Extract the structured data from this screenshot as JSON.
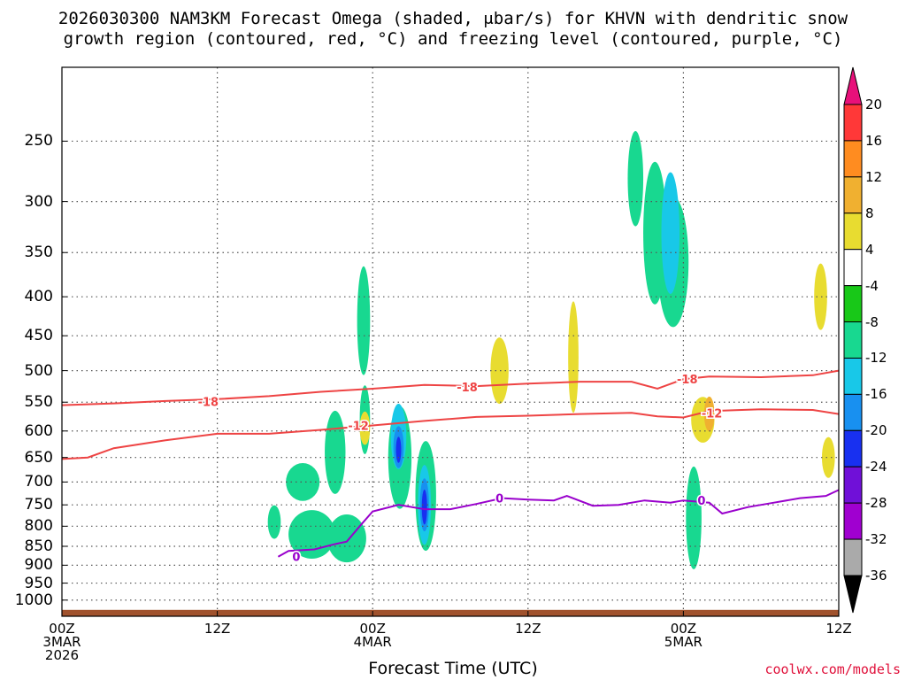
{
  "title": {
    "line1": "2026030300 NAM3KM Forecast Omega (shaded, μbar/s) for KHVN with dendritic snow",
    "line2": "growth region (contoured, red, °C) and freezing level (contoured, purple, °C)"
  },
  "credit": "coolwx.com/models",
  "colors": {
    "background": "#ffffff",
    "grid": "#555555",
    "ground": "#a0522d",
    "dgz_contour": "#ee4444",
    "freezing_contour": "#9900cc"
  },
  "chart_data": {
    "type": "heatmap",
    "title": "2026030300 NAM3KM Forecast Omega (shaded, μbar/s) for KHVN with dendritic snow growth region (contoured, red, °C) and freezing level (contoured, purple, °C)",
    "xlabel": "Forecast Time (UTC)",
    "ylabel": "",
    "x_range_hours": [
      0,
      60
    ],
    "y_range_hpa": [
      1050,
      200
    ],
    "y_scale": "log (pressure)",
    "grid": true,
    "x_ticks": [
      {
        "hour": 0,
        "lines": [
          "00Z",
          "3MAR",
          "2026"
        ]
      },
      {
        "hour": 12,
        "lines": [
          "12Z"
        ]
      },
      {
        "hour": 24,
        "lines": [
          "00Z",
          "4MAR"
        ]
      },
      {
        "hour": 36,
        "lines": [
          "12Z"
        ]
      },
      {
        "hour": 48,
        "lines": [
          "00Z",
          "5MAR"
        ]
      },
      {
        "hour": 60,
        "lines": [
          "12Z"
        ]
      }
    ],
    "y_ticks": [
      250,
      300,
      350,
      400,
      450,
      500,
      550,
      600,
      650,
      700,
      750,
      800,
      850,
      900,
      950,
      1000
    ],
    "colorbar": {
      "labels": [
        20,
        16,
        12,
        8,
        4,
        -4,
        -8,
        -12,
        -16,
        -20,
        -24,
        -28,
        -32,
        -36
      ],
      "bands": [
        {
          "lo": 16,
          "hi": 20,
          "color": "#ff3838"
        },
        {
          "lo": 12,
          "hi": 16,
          "color": "#ff8c20"
        },
        {
          "lo": 8,
          "hi": 12,
          "color": "#f0b030"
        },
        {
          "lo": 4,
          "hi": 8,
          "color": "#e8dc30"
        },
        {
          "lo": -4,
          "hi": 4,
          "color": "#ffffff"
        },
        {
          "lo": -8,
          "hi": -4,
          "color": "#18c818"
        },
        {
          "lo": -12,
          "hi": -8,
          "color": "#18d890"
        },
        {
          "lo": -16,
          "hi": -12,
          "color": "#18c8e8"
        },
        {
          "lo": -20,
          "hi": -16,
          "color": "#1890f0"
        },
        {
          "lo": -24,
          "hi": -20,
          "color": "#1830f0"
        },
        {
          "lo": -28,
          "hi": -24,
          "color": "#7010d8"
        },
        {
          "lo": -32,
          "hi": -28,
          "color": "#a000d0"
        },
        {
          "lo": -36,
          "hi": -32,
          "color": "#aaaaaa"
        }
      ],
      "top_arrow_color": "#e8107a",
      "bottom_arrow_color": "#000000"
    },
    "contours": [
      {
        "name": "-18",
        "color": "#ee4444",
        "labels": [
          {
            "hour": 11.3,
            "hpa": 549
          },
          {
            "hour": 31.3,
            "hpa": 525
          },
          {
            "hour": 48.3,
            "hpa": 513
          }
        ],
        "points": [
          [
            0,
            555
          ],
          [
            4,
            552
          ],
          [
            8,
            548
          ],
          [
            12,
            545
          ],
          [
            16,
            540
          ],
          [
            20,
            533
          ],
          [
            24,
            528
          ],
          [
            28,
            522
          ],
          [
            32,
            524
          ],
          [
            36,
            520
          ],
          [
            40,
            517
          ],
          [
            44,
            517
          ],
          [
            46,
            528
          ],
          [
            48,
            513
          ],
          [
            50,
            509
          ],
          [
            54,
            510
          ],
          [
            58,
            507
          ],
          [
            60,
            500
          ]
        ]
      },
      {
        "name": "-12",
        "color": "#ee4444",
        "labels": [
          {
            "hour": 22.9,
            "hpa": 590
          },
          {
            "hour": 50.2,
            "hpa": 568
          }
        ],
        "points": [
          [
            0,
            653
          ],
          [
            2,
            650
          ],
          [
            4,
            632
          ],
          [
            8,
            617
          ],
          [
            12,
            605
          ],
          [
            16,
            605
          ],
          [
            20,
            598
          ],
          [
            24,
            590
          ],
          [
            28,
            582
          ],
          [
            32,
            575
          ],
          [
            36,
            573
          ],
          [
            40,
            570
          ],
          [
            44,
            568
          ],
          [
            46,
            574
          ],
          [
            48,
            576
          ],
          [
            50,
            565
          ],
          [
            54,
            562
          ],
          [
            58,
            563
          ],
          [
            60,
            570
          ]
        ]
      },
      {
        "name": "0",
        "color": "#9900cc",
        "labels": [
          {
            "hour": 18.1,
            "hpa": 877
          },
          {
            "hour": 33.8,
            "hpa": 735
          },
          {
            "hour": 49.4,
            "hpa": 740
          }
        ],
        "points": [
          [
            16.7,
            877
          ],
          [
            17.5,
            862
          ],
          [
            19.5,
            858
          ],
          [
            21,
            845
          ],
          [
            22,
            838
          ],
          [
            23,
            800
          ],
          [
            24,
            765
          ],
          [
            26,
            750
          ],
          [
            28,
            760
          ],
          [
            30,
            760
          ],
          [
            32,
            748
          ],
          [
            34,
            735
          ],
          [
            36,
            738
          ],
          [
            38,
            740
          ],
          [
            39,
            730
          ],
          [
            41,
            752
          ],
          [
            43,
            750
          ],
          [
            45,
            740
          ],
          [
            47,
            745
          ],
          [
            48,
            740
          ],
          [
            50,
            745
          ],
          [
            51,
            770
          ],
          [
            53,
            755
          ],
          [
            55,
            745
          ],
          [
            57,
            735
          ],
          [
            59,
            730
          ],
          [
            60,
            717
          ]
        ]
      }
    ],
    "omega_areas": [
      {
        "band": -8,
        "hour": 18.6,
        "hpa": 700,
        "dh": 1.3,
        "dp": 40
      },
      {
        "band": -8,
        "hour": 19.3,
        "hpa": 820,
        "dh": 1.8,
        "dp": 60
      },
      {
        "band": -8,
        "hour": 16.4,
        "hpa": 790,
        "dh": 0.5,
        "dp": 40
      },
      {
        "band": -8,
        "hour": 21.1,
        "hpa": 640,
        "dh": 0.8,
        "dp": 80
      },
      {
        "band": -8,
        "hour": 22.0,
        "hpa": 830,
        "dh": 1.5,
        "dp": 60
      },
      {
        "band": -8,
        "hour": 23.3,
        "hpa": 430,
        "dh": 0.5,
        "dp": 70
      },
      {
        "band": -8,
        "hour": 23.4,
        "hpa": 580,
        "dh": 0.4,
        "dp": 60
      },
      {
        "band": -8,
        "hour": 26.1,
        "hpa": 650,
        "dh": 0.9,
        "dp": 100
      },
      {
        "band": -8,
        "hour": 28.1,
        "hpa": 730,
        "dh": 0.8,
        "dp": 120
      },
      {
        "band": -8,
        "hour": 44.3,
        "hpa": 280,
        "dh": 0.6,
        "dp": 40
      },
      {
        "band": -8,
        "hour": 45.8,
        "hpa": 330,
        "dh": 0.9,
        "dp": 70
      },
      {
        "band": -8,
        "hour": 47.2,
        "hpa": 360,
        "dh": 1.2,
        "dp": 70
      },
      {
        "band": -8,
        "hour": 48.8,
        "hpa": 780,
        "dh": 0.6,
        "dp": 120
      },
      {
        "band": -12,
        "hour": 47.0,
        "hpa": 330,
        "dh": 0.7,
        "dp": 60
      },
      {
        "band": -12,
        "hour": 26.0,
        "hpa": 610,
        "dh": 0.6,
        "dp": 60
      },
      {
        "band": -12,
        "hour": 28.0,
        "hpa": 750,
        "dh": 0.5,
        "dp": 90
      },
      {
        "band": -16,
        "hour": 26.0,
        "hpa": 630,
        "dh": 0.4,
        "dp": 40
      },
      {
        "band": -16,
        "hour": 28.0,
        "hpa": 750,
        "dh": 0.35,
        "dp": 60
      },
      {
        "band": -20,
        "hour": 26.0,
        "hpa": 635,
        "dh": 0.2,
        "dp": 25
      },
      {
        "band": -20,
        "hour": 28.0,
        "hpa": 755,
        "dh": 0.2,
        "dp": 40
      },
      {
        "band": 4,
        "hour": 33.8,
        "hpa": 500,
        "dh": 0.7,
        "dp": 50
      },
      {
        "band": 4,
        "hour": 39.5,
        "hpa": 480,
        "dh": 0.4,
        "dp": 80
      },
      {
        "band": 4,
        "hour": 49.5,
        "hpa": 580,
        "dh": 0.9,
        "dp": 40
      },
      {
        "band": 4,
        "hour": 58.6,
        "hpa": 400,
        "dh": 0.5,
        "dp": 40
      },
      {
        "band": 4,
        "hour": 59.2,
        "hpa": 650,
        "dh": 0.5,
        "dp": 40
      },
      {
        "band": 4,
        "hour": 23.4,
        "hpa": 595,
        "dh": 0.4,
        "dp": 30
      },
      {
        "band": 8,
        "hour": 50.0,
        "hpa": 570,
        "dh": 0.4,
        "dp": 30
      }
    ]
  }
}
